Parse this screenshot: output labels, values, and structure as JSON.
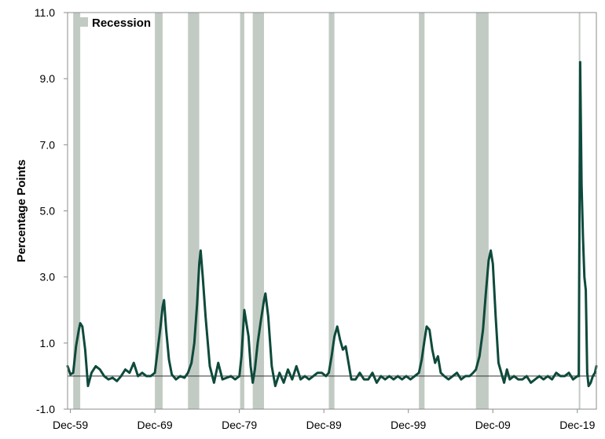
{
  "chart_data": {
    "type": "line",
    "title": "",
    "xlabel": "",
    "ylabel": "Percentage Points",
    "ylim": [
      -1.0,
      11.0
    ],
    "yticks": [
      "11.0",
      "9.0",
      "7.0",
      "5.0",
      "3.0",
      "1.0",
      "-1.0"
    ],
    "xticks": [
      "Dec-59",
      "Dec-69",
      "Dec-79",
      "Dec-89",
      "Dec-99",
      "Dec-09",
      "Dec-19"
    ],
    "xlim": [
      "1959-08",
      "2022-03"
    ],
    "legend": {
      "position": "top-left",
      "entries": [
        "Recession"
      ]
    },
    "colors": {
      "line": "#0e4a3b",
      "recession": "#c2cbc3",
      "zero_line": "#333333"
    },
    "recessions": [
      {
        "start": "1960-04",
        "end": "1961-02"
      },
      {
        "start": "1969-12",
        "end": "1970-11"
      },
      {
        "start": "1973-11",
        "end": "1975-03"
      },
      {
        "start": "1980-01",
        "end": "1980-07"
      },
      {
        "start": "1981-07",
        "end": "1982-11"
      },
      {
        "start": "1990-07",
        "end": "1991-03"
      },
      {
        "start": "2001-03",
        "end": "2001-11"
      },
      {
        "start": "2007-12",
        "end": "2009-06"
      },
      {
        "start": "2020-02",
        "end": "2020-04"
      }
    ],
    "series": [
      {
        "points": [
          [
            "1959-08",
            0.3
          ],
          [
            "1959-12",
            0.05
          ],
          [
            "1960-04",
            0.1
          ],
          [
            "1960-08",
            0.9
          ],
          [
            "1960-12",
            1.4
          ],
          [
            "1961-02",
            1.6
          ],
          [
            "1961-05",
            1.5
          ],
          [
            "1961-09",
            0.8
          ],
          [
            "1962-01",
            -0.3
          ],
          [
            "1962-06",
            0.1
          ],
          [
            "1962-12",
            0.3
          ],
          [
            "1963-06",
            0.2
          ],
          [
            "1963-12",
            0.0
          ],
          [
            "1964-06",
            -0.1
          ],
          [
            "1964-12",
            -0.05
          ],
          [
            "1965-06",
            -0.15
          ],
          [
            "1965-12",
            0.0
          ],
          [
            "1966-06",
            0.2
          ],
          [
            "1966-12",
            0.1
          ],
          [
            "1967-06",
            0.4
          ],
          [
            "1967-12",
            0.0
          ],
          [
            "1968-06",
            0.1
          ],
          [
            "1968-12",
            0.0
          ],
          [
            "1969-06",
            0.0
          ],
          [
            "1969-12",
            0.1
          ],
          [
            "1970-04",
            0.8
          ],
          [
            "1970-08",
            1.5
          ],
          [
            "1970-11",
            2.1
          ],
          [
            "1971-01",
            2.3
          ],
          [
            "1971-04",
            1.4
          ],
          [
            "1971-08",
            0.5
          ],
          [
            "1971-12",
            0.05
          ],
          [
            "1972-06",
            -0.1
          ],
          [
            "1972-12",
            0.0
          ],
          [
            "1973-06",
            -0.05
          ],
          [
            "1973-11",
            0.1
          ],
          [
            "1974-04",
            0.4
          ],
          [
            "1974-08",
            1.0
          ],
          [
            "1974-12",
            2.2
          ],
          [
            "1975-03",
            3.4
          ],
          [
            "1975-05",
            3.8
          ],
          [
            "1975-08",
            3.0
          ],
          [
            "1975-12",
            1.8
          ],
          [
            "1976-06",
            0.3
          ],
          [
            "1976-12",
            -0.2
          ],
          [
            "1977-06",
            0.4
          ],
          [
            "1977-12",
            -0.1
          ],
          [
            "1978-06",
            -0.05
          ],
          [
            "1978-12",
            0.0
          ],
          [
            "1979-06",
            -0.1
          ],
          [
            "1979-12",
            0.0
          ],
          [
            "1980-03",
            0.6
          ],
          [
            "1980-05",
            1.3
          ],
          [
            "1980-07",
            2.0
          ],
          [
            "1980-10",
            1.6
          ],
          [
            "1981-01",
            1.2
          ],
          [
            "1981-04",
            0.3
          ],
          [
            "1981-07",
            -0.2
          ],
          [
            "1981-10",
            0.2
          ],
          [
            "1982-02",
            1.0
          ],
          [
            "1982-06",
            1.6
          ],
          [
            "1982-11",
            2.3
          ],
          [
            "1983-01",
            2.5
          ],
          [
            "1983-05",
            1.8
          ],
          [
            "1983-10",
            0.3
          ],
          [
            "1984-03",
            -0.3
          ],
          [
            "1984-09",
            0.1
          ],
          [
            "1985-03",
            -0.2
          ],
          [
            "1985-09",
            0.2
          ],
          [
            "1986-03",
            -0.1
          ],
          [
            "1986-09",
            0.3
          ],
          [
            "1987-03",
            -0.1
          ],
          [
            "1987-09",
            0.0
          ],
          [
            "1988-03",
            -0.1
          ],
          [
            "1988-09",
            0.0
          ],
          [
            "1989-03",
            0.1
          ],
          [
            "1989-09",
            0.1
          ],
          [
            "1990-03",
            0.0
          ],
          [
            "1990-07",
            0.1
          ],
          [
            "1990-11",
            0.6
          ],
          [
            "1991-03",
            1.2
          ],
          [
            "1991-07",
            1.5
          ],
          [
            "1991-11",
            1.1
          ],
          [
            "1992-03",
            0.8
          ],
          [
            "1992-07",
            0.9
          ],
          [
            "1992-11",
            0.4
          ],
          [
            "1993-03",
            -0.1
          ],
          [
            "1993-09",
            -0.1
          ],
          [
            "1994-03",
            0.1
          ],
          [
            "1994-09",
            -0.1
          ],
          [
            "1995-03",
            -0.1
          ],
          [
            "1995-09",
            0.1
          ],
          [
            "1996-03",
            -0.2
          ],
          [
            "1996-09",
            0.0
          ],
          [
            "1997-03",
            -0.1
          ],
          [
            "1997-09",
            0.0
          ],
          [
            "1998-03",
            -0.1
          ],
          [
            "1998-09",
            0.0
          ],
          [
            "1999-03",
            -0.1
          ],
          [
            "1999-09",
            0.0
          ],
          [
            "2000-03",
            -0.1
          ],
          [
            "2000-09",
            0.0
          ],
          [
            "2001-03",
            0.1
          ],
          [
            "2001-07",
            0.5
          ],
          [
            "2001-11",
            1.1
          ],
          [
            "2002-02",
            1.5
          ],
          [
            "2002-06",
            1.4
          ],
          [
            "2002-10",
            0.8
          ],
          [
            "2003-02",
            0.4
          ],
          [
            "2003-06",
            0.6
          ],
          [
            "2003-10",
            0.1
          ],
          [
            "2004-03",
            0.0
          ],
          [
            "2004-09",
            -0.1
          ],
          [
            "2005-03",
            0.0
          ],
          [
            "2005-09",
            0.1
          ],
          [
            "2006-03",
            -0.1
          ],
          [
            "2006-09",
            0.0
          ],
          [
            "2007-03",
            0.0
          ],
          [
            "2007-08",
            0.1
          ],
          [
            "2007-12",
            0.2
          ],
          [
            "2008-05",
            0.6
          ],
          [
            "2008-10",
            1.4
          ],
          [
            "2009-02",
            2.5
          ],
          [
            "2009-06",
            3.5
          ],
          [
            "2009-09",
            3.8
          ],
          [
            "2009-12",
            3.4
          ],
          [
            "2010-04",
            1.8
          ],
          [
            "2010-08",
            0.4
          ],
          [
            "2010-12",
            0.1
          ],
          [
            "2011-04",
            -0.2
          ],
          [
            "2011-08",
            0.2
          ],
          [
            "2011-12",
            -0.1
          ],
          [
            "2012-06",
            0.0
          ],
          [
            "2012-12",
            -0.1
          ],
          [
            "2013-06",
            -0.1
          ],
          [
            "2013-12",
            0.0
          ],
          [
            "2014-06",
            -0.2
          ],
          [
            "2014-12",
            -0.1
          ],
          [
            "2015-06",
            0.0
          ],
          [
            "2015-12",
            -0.1
          ],
          [
            "2016-06",
            0.0
          ],
          [
            "2016-12",
            -0.1
          ],
          [
            "2017-06",
            0.1
          ],
          [
            "2017-12",
            0.0
          ],
          [
            "2018-06",
            0.0
          ],
          [
            "2018-12",
            0.1
          ],
          [
            "2019-06",
            -0.1
          ],
          [
            "2019-12",
            0.0
          ],
          [
            "2020-02",
            0.0
          ],
          [
            "2020-04",
            9.5
          ],
          [
            "2020-06",
            5.8
          ],
          [
            "2020-08",
            4.2
          ],
          [
            "2020-10",
            3.0
          ],
          [
            "2020-12",
            2.6
          ],
          [
            "2021-02",
            0.1
          ],
          [
            "2021-04",
            -0.3
          ],
          [
            "2021-07",
            -0.2
          ],
          [
            "2021-10",
            0.0
          ],
          [
            "2022-01",
            0.1
          ],
          [
            "2022-03",
            0.3
          ]
        ]
      }
    ]
  }
}
